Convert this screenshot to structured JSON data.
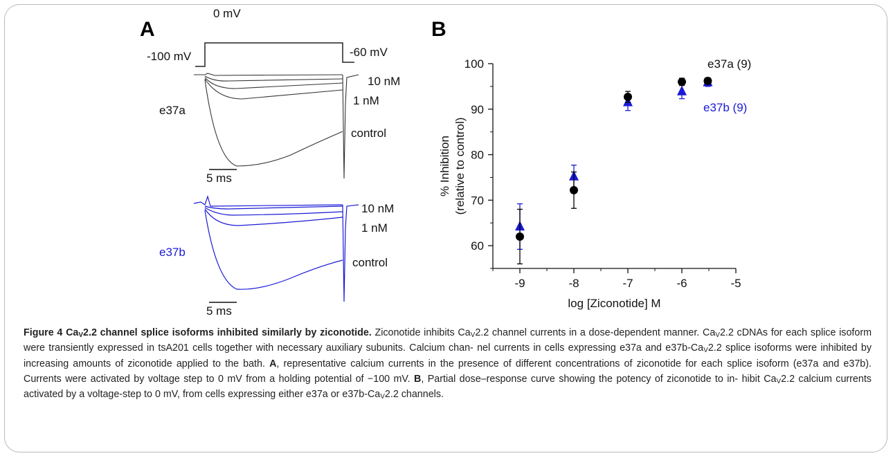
{
  "panel_a": {
    "letter": "A",
    "protocol": {
      "step_label": "0 mV",
      "holding_label": "-100 mV",
      "end_label": "-60 mV"
    },
    "traces_top": {
      "isoform": "e37a",
      "labels": {
        "c10": "10 nM",
        "c1": "1 nM",
        "control": "control"
      },
      "scalebar": "5 ms",
      "color": "#333333"
    },
    "traces_bottom": {
      "isoform": "e37b",
      "labels": {
        "c10": "10 nM",
        "c1": "1 nM",
        "control": "control"
      },
      "scalebar": "5 ms",
      "color": "#1a1ad6",
      "label_color": "#1a1ad6"
    }
  },
  "panel_b": {
    "letter": "B",
    "legend": {
      "e37a": "e37a (9)",
      "e37b": "e37b (9)"
    }
  },
  "chart_data": {
    "type": "scatter",
    "xlabel": "log [Ziconotide] M",
    "ylabel": "% Inhibition (relative to control)",
    "ylabel_lines": [
      "% Inhibition",
      "(relative to control)"
    ],
    "xlim": [
      -9.5,
      -5
    ],
    "ylim": [
      55,
      100
    ],
    "xticks": [
      -9,
      -8,
      -7,
      -6,
      -5
    ],
    "yticks": [
      60,
      70,
      80,
      90,
      100
    ],
    "grid": false,
    "series": [
      {
        "name": "e37a (9)",
        "marker": "circle",
        "color": "#000000",
        "x": [
          -9,
          -8,
          -7,
          -6,
          -5.52
        ],
        "y": [
          62,
          72.2,
          92.7,
          96,
          96.2
        ],
        "err": [
          6,
          4,
          1.2,
          0.8,
          0.7
        ]
      },
      {
        "name": "e37b (9)",
        "marker": "triangle",
        "color": "#1a1ad6",
        "x": [
          -9,
          -8,
          -7,
          -6,
          -5.52
        ],
        "y": [
          64.2,
          75.2,
          91.5,
          93.9,
          95.9
        ],
        "err": [
          5,
          2.5,
          1.8,
          1.6,
          0.9
        ]
      }
    ]
  },
  "caption": {
    "title_pre": "Figure 4 Ca",
    "title_sub": "V",
    "title_post": "2.2 channel splice isoforms inhibited similarly by ziconotide.",
    "s1a": " Ziconotide inhibits Ca",
    "s1b": "2.2 channel currents in a dose-dependent",
    "s1c": "manner. Ca",
    "s1d": "2.2 cDNAs for each splice isoform were transiently expressed in tsA201 cells together with necessary auxiliary subunits. Calcium chan-",
    "s1e": "nel currents in cells expressing e37a and e37b-Ca",
    "s1f": "2.2 splice isoforms were inhibited by increasing amounts of ziconotide applied to the bath.",
    "bold_a": "A",
    "s2": ",",
    "s3": "representative calcium currents in the presence of different concentrations of ziconotide for each splice isoform (e37a and e37b). Currents were",
    "s4": "activated by voltage step to 0 mV from a holding potential of −100 mV.",
    "bold_b": "B",
    "s5": ", Partial dose–response curve showing the potency of ziconotide to in-",
    "s6a": "hibit Ca",
    "s6b": "2.2 calcium currents activated by a voltage-step to 0 mV, from cells expressing either e37a or e37b-Ca",
    "s6c": "2.2 channels.",
    "sub_v": "V"
  }
}
